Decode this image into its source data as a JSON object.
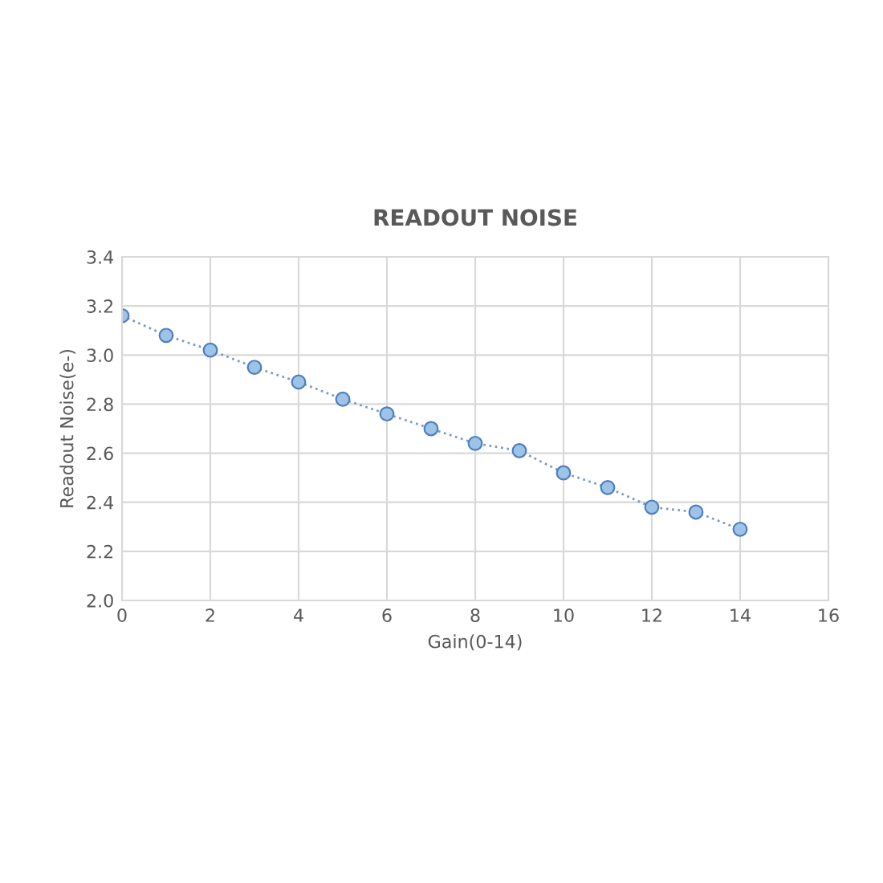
{
  "chart_data": {
    "type": "line",
    "title": "READOUT NOISE",
    "xlabel": "Gain(0-14)",
    "ylabel": "Readout Noise(e-)",
    "x": [
      0,
      1,
      2,
      3,
      4,
      5,
      6,
      7,
      8,
      9,
      10,
      11,
      12,
      13,
      14
    ],
    "series": [
      {
        "color": "#9dc3e6",
        "values": [
          3.16,
          3.08,
          3.02,
          2.95,
          2.89,
          2.82,
          2.76,
          2.7,
          2.64,
          2.61,
          2.52,
          2.46,
          2.38,
          2.36,
          2.29
        ]
      }
    ],
    "xlim": [
      0,
      16
    ],
    "xticks": [
      0,
      2,
      4,
      6,
      8,
      10,
      12,
      14,
      16
    ],
    "ylim": [
      2.0,
      3.4
    ],
    "yticks": [
      {
        "value": 2.0,
        "label": "2.0"
      },
      {
        "value": 2.2,
        "label": "2.2"
      },
      {
        "value": 2.4,
        "label": "2.4"
      },
      {
        "value": 2.6,
        "label": "2.6"
      },
      {
        "value": 2.8,
        "label": "2.8"
      },
      {
        "value": 3.0,
        "label": "3.0"
      },
      {
        "value": 3.2,
        "label": "3.2"
      },
      {
        "value": 3.4,
        "label": "3.4"
      }
    ],
    "grid": true,
    "marker": "circle",
    "line_style": "dotted"
  }
}
